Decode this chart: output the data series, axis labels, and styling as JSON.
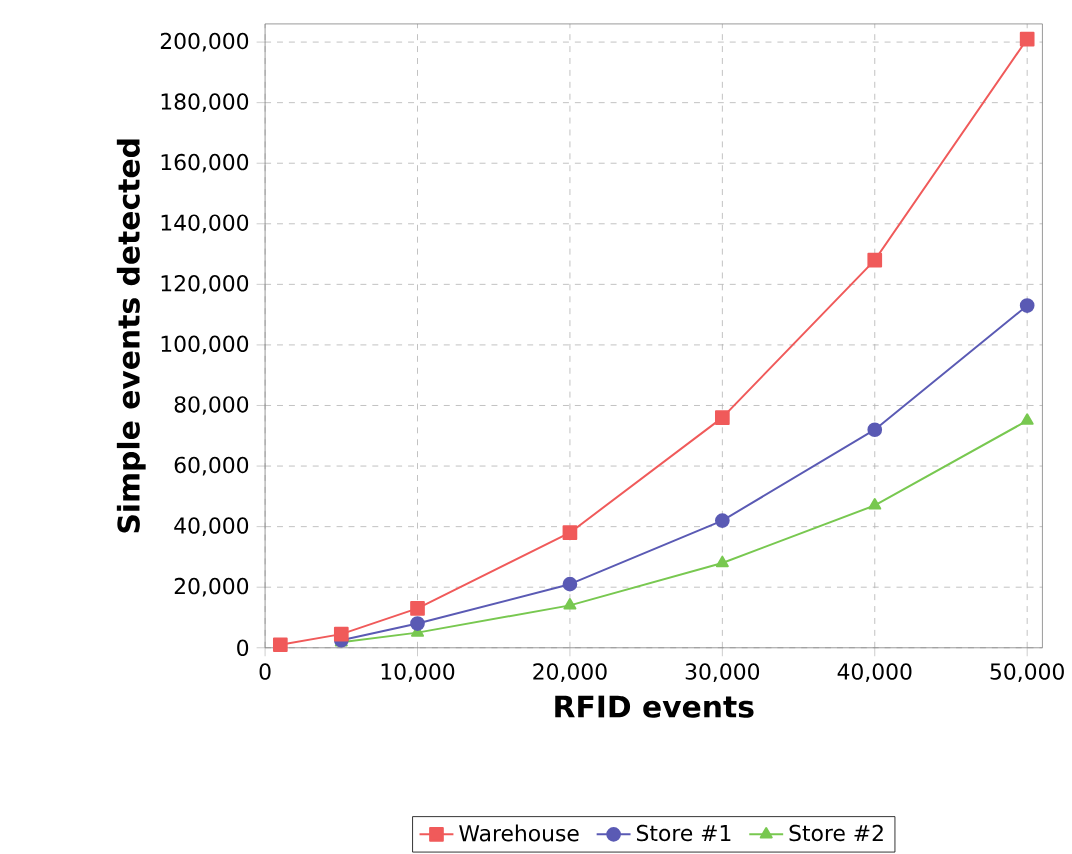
{
  "chart_data": {
    "type": "line",
    "xlabel": "RFID events",
    "ylabel": "Simple events detected",
    "x": [
      1000,
      5000,
      10000,
      20000,
      30000,
      40000,
      50000
    ],
    "series": [
      {
        "name": "Warehouse",
        "color": "#f05a5a",
        "marker": "square",
        "values": [
          1000,
          4500,
          13000,
          38000,
          76000,
          128000,
          201000
        ]
      },
      {
        "name": "Store #1",
        "color": "#5a5ab4",
        "marker": "circle",
        "values": [
          null,
          2500,
          8000,
          21000,
          42000,
          72000,
          113000
        ]
      },
      {
        "name": "Store #2",
        "color": "#78c850",
        "marker": "triangle",
        "values": [
          null,
          1800,
          5000,
          14000,
          28000,
          47000,
          75000
        ]
      }
    ],
    "xlim": [
      0,
      51000
    ],
    "ylim": [
      0,
      206000
    ],
    "xticks": [
      0,
      {
        "value": 10000,
        "label": "10,000"
      },
      {
        "value": 20000,
        "label": "20,000"
      },
      {
        "value": 30000,
        "label": "30,000"
      },
      {
        "value": 40000,
        "label": "40,000"
      },
      {
        "value": 50000,
        "label": "50,000"
      }
    ],
    "yticks": [
      0,
      {
        "value": 20000,
        "label": "20,000"
      },
      {
        "value": 40000,
        "label": "40,000"
      },
      {
        "value": 60000,
        "label": "60,000"
      },
      {
        "value": 80000,
        "label": "80,000"
      },
      {
        "value": 100000,
        "label": "100,000"
      },
      {
        "value": 120000,
        "label": "120,000"
      },
      {
        "value": 140000,
        "label": "140,000"
      },
      {
        "value": 160000,
        "label": "160,000"
      },
      {
        "value": 180000,
        "label": "180,000"
      },
      {
        "value": 200000,
        "label": "200,000"
      }
    ],
    "grid": true,
    "legend": "bottom",
    "line_style": "solid"
  }
}
